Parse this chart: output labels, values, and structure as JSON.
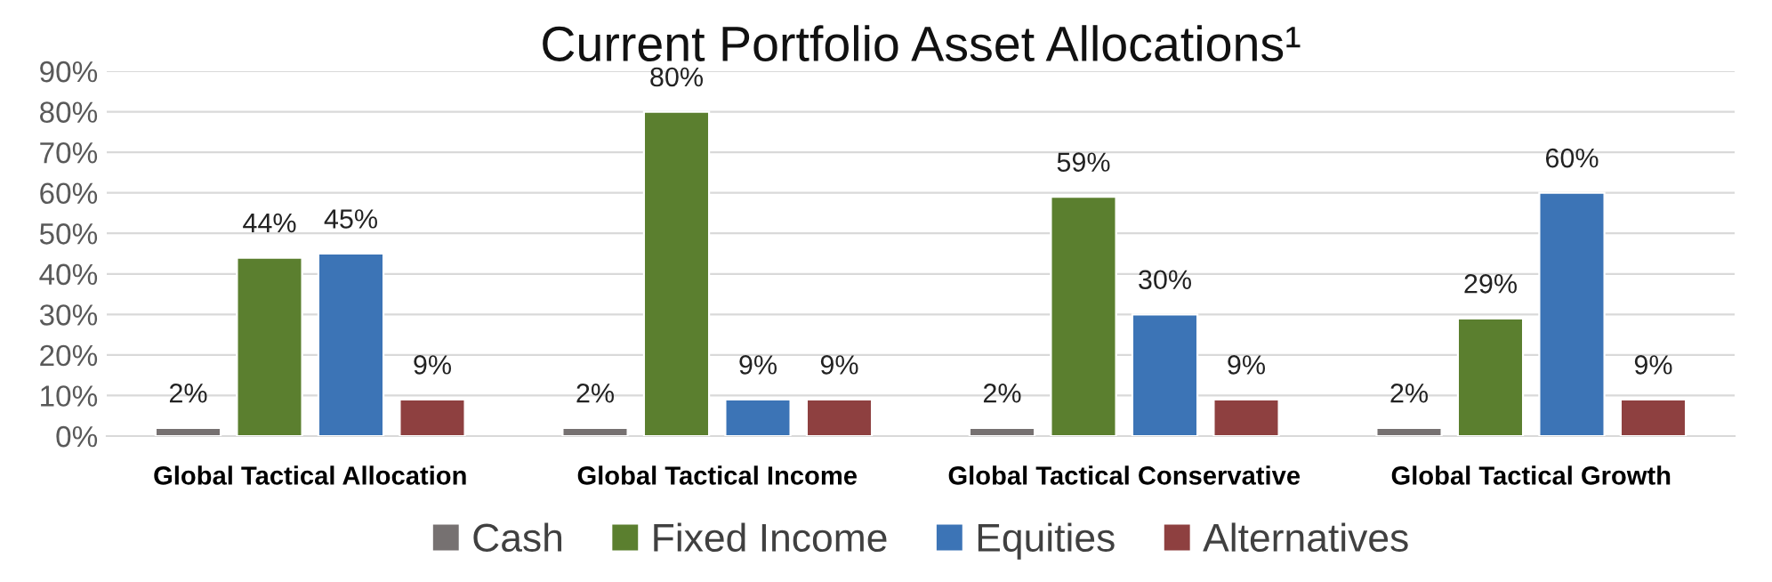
{
  "chart_data": {
    "type": "bar",
    "title": "Current Portfolio Asset Allocations¹",
    "categories": [
      "Global Tactical Allocation",
      "Global Tactical Income",
      "Global Tactical Conservative",
      "Global Tactical Growth"
    ],
    "series": [
      {
        "name": "Cash",
        "color": "#767171",
        "values": [
          2,
          2,
          2,
          2
        ],
        "value_labels": [
          "2%",
          "2%",
          "2%",
          "2%"
        ]
      },
      {
        "name": "Fixed Income",
        "color": "#5b7f2f",
        "values": [
          44,
          80,
          59,
          29
        ],
        "value_labels": [
          "44%",
          "80%",
          "59%",
          "29%"
        ]
      },
      {
        "name": "Equities",
        "color": "#3c74b6",
        "values": [
          45,
          9,
          30,
          60
        ],
        "value_labels": [
          "45%",
          "9%",
          "30%",
          "60%"
        ]
      },
      {
        "name": "Alternatives",
        "color": "#8e4040",
        "values": [
          9,
          9,
          9,
          9
        ],
        "value_labels": [
          "9%",
          "9%",
          "9%",
          "9%"
        ]
      }
    ],
    "ylim": [
      0,
      90
    ],
    "yticks": [
      {
        "value": 0,
        "label": "0%"
      },
      {
        "value": 10,
        "label": "10%"
      },
      {
        "value": 20,
        "label": "20%"
      },
      {
        "value": 30,
        "label": "30%"
      },
      {
        "value": 40,
        "label": "40%"
      },
      {
        "value": 50,
        "label": "50%"
      },
      {
        "value": 60,
        "label": "60%"
      },
      {
        "value": 70,
        "label": "70%"
      },
      {
        "value": 80,
        "label": "80%"
      },
      {
        "value": 90,
        "label": "90%"
      }
    ],
    "grid": "y",
    "legend": "bottom"
  }
}
